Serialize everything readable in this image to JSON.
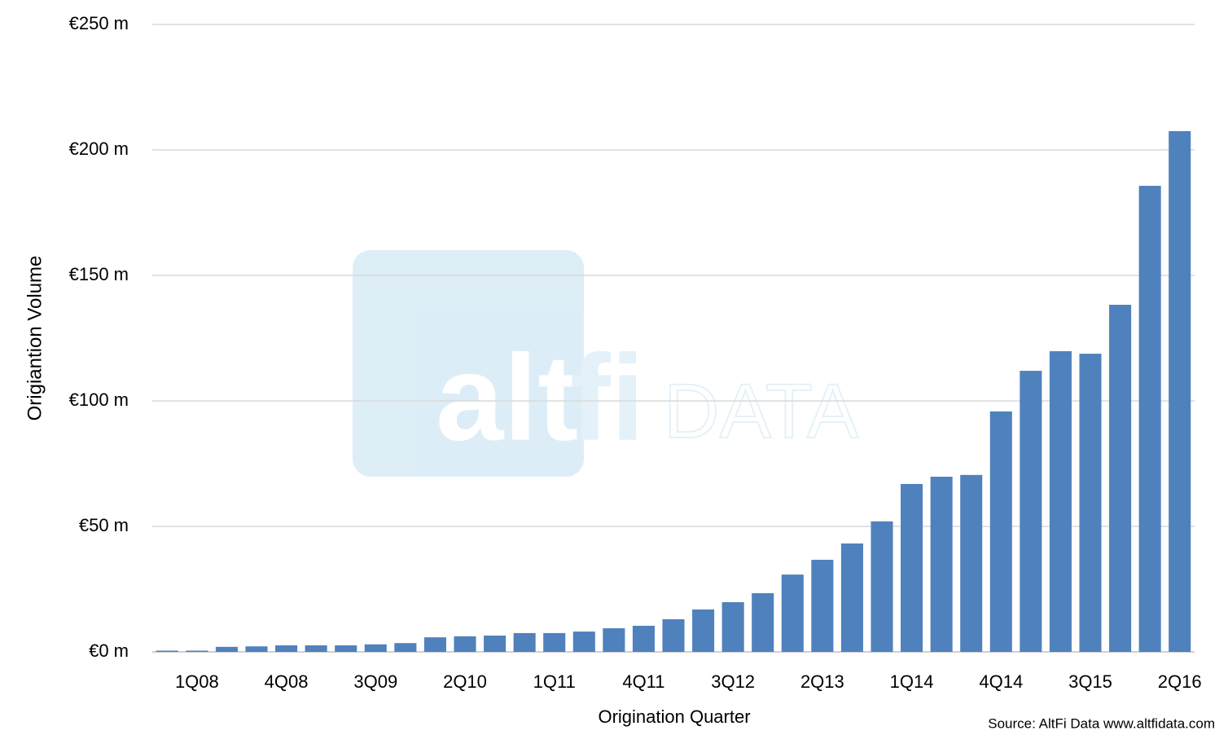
{
  "chart_data": {
    "type": "bar",
    "categories": [
      null,
      "1Q08",
      null,
      null,
      "4Q08",
      null,
      null,
      "3Q09",
      null,
      null,
      "2Q10",
      null,
      null,
      "1Q11",
      null,
      null,
      "4Q11",
      null,
      null,
      "3Q12",
      null,
      null,
      "2Q13",
      null,
      null,
      "1Q14",
      null,
      null,
      "4Q14",
      null,
      null,
      "3Q15",
      null,
      null,
      "2Q16"
    ],
    "values": [
      0.5,
      0.5,
      2,
      2.2,
      2.6,
      2.6,
      2.6,
      3,
      3.5,
      5.8,
      6.2,
      6.5,
      7.5,
      7.5,
      8.1,
      9.4,
      10.4,
      13,
      16.9,
      19.8,
      23.4,
      30.8,
      36.7,
      43.2,
      52,
      66.9,
      69.8,
      70.5,
      95.8,
      112,
      119.8,
      118.8,
      138.3,
      185.7,
      207.5
    ],
    "color": "#4f81bd",
    "ylim": [
      0,
      250
    ],
    "yticks": [
      {
        "value": 0,
        "label": "€0 m"
      },
      {
        "value": 50,
        "label": "€50 m"
      },
      {
        "value": 100,
        "label": "€100 m"
      },
      {
        "value": 150,
        "label": "€150 m"
      },
      {
        "value": 200,
        "label": "€200 m"
      },
      {
        "value": 250,
        "label": "€250 m"
      }
    ],
    "grid": true,
    "x_label": "Origination Quarter",
    "y_label": "Origiantion Volume",
    "source": "Source: AltFi Data www.altfidata.com",
    "watermark": {
      "alt": "alt",
      "fi": "fi",
      "data": "DATA"
    }
  }
}
